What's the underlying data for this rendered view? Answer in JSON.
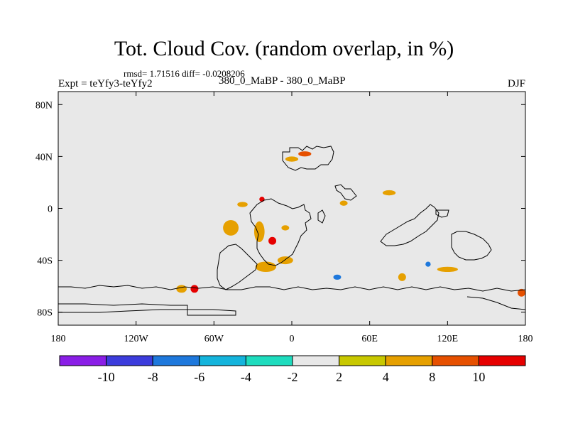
{
  "chart_data": {
    "type": "heatmap",
    "title": "Tot. Cloud Cov. (random overlap, in %)",
    "stats_text": "rmsd= 1.71516 diff= -0.0208206",
    "left_label": "Expt = teYfy3-teYfy2",
    "center_label": "380_0_MaBP - 380_0_MaBP",
    "right_label": "DJF",
    "x_range": [
      -180,
      180
    ],
    "y_range": [
      -90,
      90
    ],
    "x_ticks": [
      {
        "value": -180,
        "label": "180"
      },
      {
        "value": -120,
        "label": "120W"
      },
      {
        "value": -60,
        "label": "60W"
      },
      {
        "value": 0,
        "label": "0"
      },
      {
        "value": 60,
        "label": "60E"
      },
      {
        "value": 120,
        "label": "120E"
      },
      {
        "value": 180,
        "label": "180"
      }
    ],
    "y_ticks": [
      {
        "value": 80,
        "label": "80N"
      },
      {
        "value": 40,
        "label": "40N"
      },
      {
        "value": 0,
        "label": "0"
      },
      {
        "value": -40,
        "label": "40S"
      },
      {
        "value": -80,
        "label": "80S"
      }
    ],
    "colorbar": {
      "levels": [
        -10,
        -8,
        -6,
        -4,
        -2,
        2,
        4,
        8,
        10
      ],
      "level_labels": [
        "-10",
        "-8",
        "-6",
        "-4",
        "-2",
        "2",
        "4",
        "8",
        "10"
      ],
      "colors": [
        "#8a1ee6",
        "#3c3cdc",
        "#1e78dc",
        "#14b4dc",
        "#1edcbe",
        "#e8e8e8",
        "#c8c800",
        "#e6a000",
        "#e65000",
        "#e60000"
      ]
    },
    "anomaly_patches": [
      {
        "lon": -140,
        "lat": -20,
        "rlon": 10,
        "rlat": 3,
        "level": "-2"
      },
      {
        "lon": -150,
        "lat": -32,
        "rlon": 8,
        "rlat": 2,
        "level": "-2"
      },
      {
        "lon": -105,
        "lat": -37,
        "rlon": 7,
        "rlat": 2,
        "level": "-2"
      },
      {
        "lon": -47,
        "lat": -15,
        "rlon": 6,
        "rlat": 6,
        "level": "4"
      },
      {
        "lon": -38,
        "lat": 3,
        "rlon": 4,
        "rlat": 2,
        "level": "4"
      },
      {
        "lon": -25,
        "lat": -18,
        "rlon": 4,
        "rlat": 8,
        "level": "4"
      },
      {
        "lon": -15,
        "lat": -25,
        "rlon": 3,
        "rlat": 3,
        "level": "10"
      },
      {
        "lon": -23,
        "lat": 7,
        "rlon": 2,
        "rlat": 2,
        "level": "10"
      },
      {
        "lon": -20,
        "lat": -45,
        "rlon": 8,
        "rlat": 4,
        "level": "4"
      },
      {
        "lon": -5,
        "lat": -40,
        "rlon": 6,
        "rlat": 3,
        "level": "4"
      },
      {
        "lon": -5,
        "lat": -15,
        "rlon": 3,
        "rlat": 2,
        "level": "4"
      },
      {
        "lon": 10,
        "lat": -5,
        "rlon": 10,
        "rlat": 4,
        "level": "-2"
      },
      {
        "lon": 23,
        "lat": -3,
        "rlon": 7,
        "rlat": 3,
        "level": "-2"
      },
      {
        "lon": 40,
        "lat": -2,
        "rlon": 10,
        "rlat": 3,
        "level": "-2"
      },
      {
        "lon": 35,
        "lat": 14,
        "rlon": 4,
        "rlat": 4,
        "level": "-2"
      },
      {
        "lon": 40,
        "lat": 4,
        "rlon": 3,
        "rlat": 2,
        "level": "4"
      },
      {
        "lon": 75,
        "lat": 12,
        "rlon": 5,
        "rlat": 2,
        "level": "4"
      },
      {
        "lon": 90,
        "lat": -27,
        "rlon": 6,
        "rlat": 3,
        "level": "-2"
      },
      {
        "lon": 10,
        "lat": 42,
        "rlon": 5,
        "rlat": 2,
        "level": "8"
      },
      {
        "lon": 0,
        "lat": 38,
        "rlon": 5,
        "rlat": 2,
        "level": "4"
      },
      {
        "lon": 15,
        "lat": 33,
        "rlon": 4,
        "rlat": 2,
        "level": "-2"
      },
      {
        "lon": 20,
        "lat": -45,
        "rlon": 3,
        "rlat": 2,
        "level": "-2"
      },
      {
        "lon": 35,
        "lat": -53,
        "rlon": 3,
        "rlat": 2,
        "level": "-8"
      },
      {
        "lon": 55,
        "lat": -43,
        "rlon": 5,
        "rlat": 2,
        "level": "-2"
      },
      {
        "lon": 85,
        "lat": -53,
        "rlon": 3,
        "rlat": 3,
        "level": "4"
      },
      {
        "lon": 105,
        "lat": -43,
        "rlon": 2,
        "rlat": 2,
        "level": "-8"
      },
      {
        "lon": 120,
        "lat": -47,
        "rlon": 8,
        "rlat": 2,
        "level": "4"
      },
      {
        "lon": 130,
        "lat": -62,
        "rlon": 4,
        "rlat": 2,
        "level": "-2"
      },
      {
        "lon": 150,
        "lat": -74,
        "rlon": 3,
        "rlat": 2,
        "level": "-2"
      },
      {
        "lon": 177,
        "lat": -65,
        "rlon": 3,
        "rlat": 3,
        "level": "8"
      },
      {
        "lon": -85,
        "lat": -62,
        "rlon": 4,
        "rlat": 3,
        "level": "4"
      },
      {
        "lon": -75,
        "lat": -62,
        "rlon": 3,
        "rlat": 3,
        "level": "10"
      },
      {
        "lon": -100,
        "lat": -67,
        "rlon": 3,
        "rlat": 2,
        "level": "-2"
      },
      {
        "lon": -160,
        "lat": -65,
        "rlon": 4,
        "rlat": 2,
        "level": "-2"
      },
      {
        "lon": -130,
        "lat": 37,
        "rlon": 2,
        "rlat": 1.5,
        "level": "-2"
      },
      {
        "lon": -170,
        "lat": 13,
        "rlon": 2,
        "rlat": 1.5,
        "level": "-2"
      },
      {
        "lon": 177,
        "lat": 75,
        "rlon": 3,
        "rlat": 1.5,
        "level": "-2"
      },
      {
        "lon": 0,
        "lat": 75,
        "rlon": 4,
        "rlat": 1,
        "level": "-2"
      }
    ]
  }
}
